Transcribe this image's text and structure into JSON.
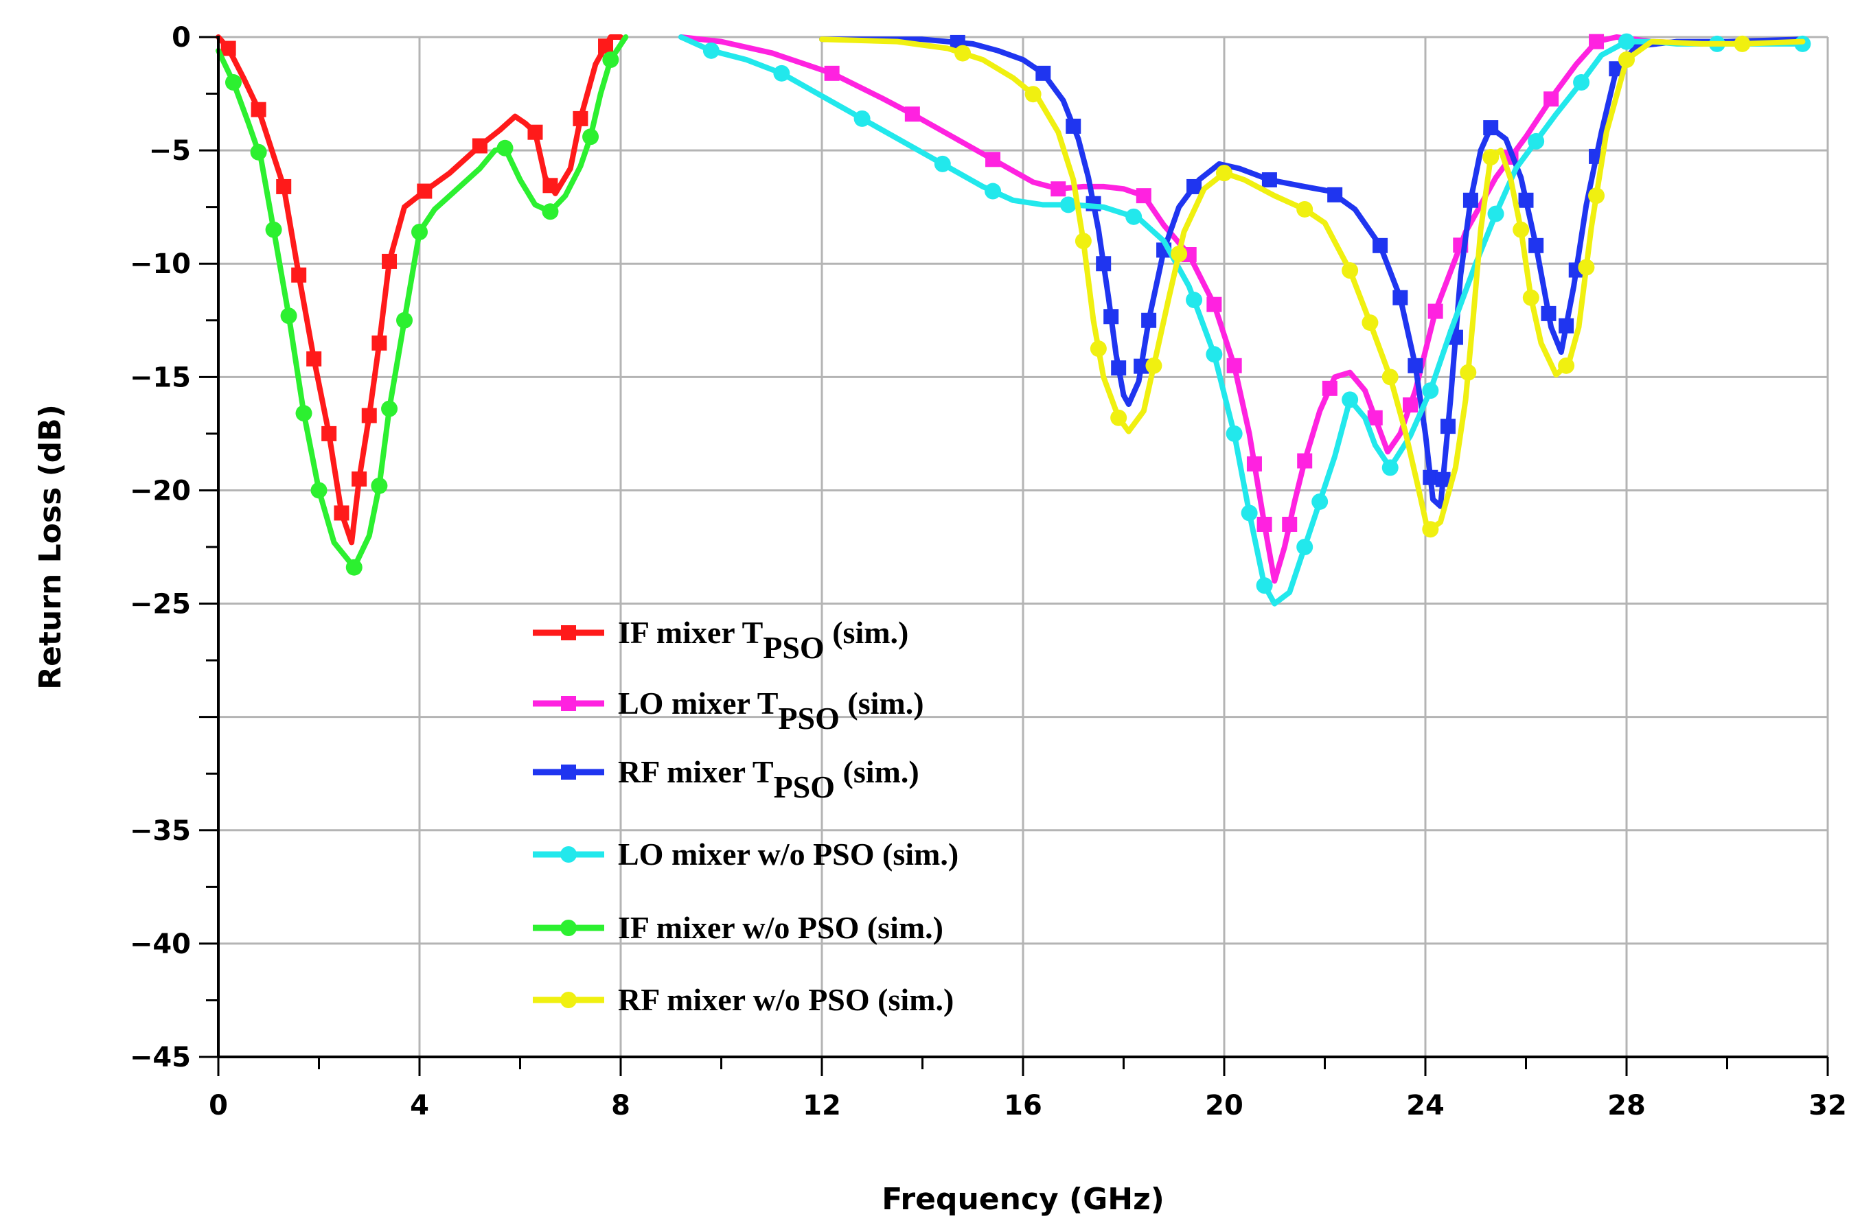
{
  "chart_data": {
    "type": "line",
    "title": "",
    "xlabel": "Frequency (GHz)",
    "ylabel": "Return Loss (dB)",
    "xlim": [
      0,
      32
    ],
    "ylim": [
      -45,
      0
    ],
    "x_ticks": [
      0,
      4,
      8,
      12,
      16,
      20,
      24,
      28,
      32
    ],
    "x_tick_labels": [
      "0",
      "4",
      "8",
      "12",
      "16",
      "20",
      "24",
      "28",
      "32"
    ],
    "y_ticks": [
      0,
      -5,
      -10,
      -15,
      -20,
      -25,
      -35,
      -40,
      -45
    ],
    "y_tick_labels": [
      "0",
      "−5",
      "−10",
      "−15",
      "−20",
      "−25",
      "−35",
      "−40",
      "−45"
    ],
    "grid": true,
    "legend_position": "lower-center",
    "series": [
      {
        "name": "IF mixer T",
        "sub": "PSO",
        "suffix": " (sim.)",
        "color": "#ff1a1a",
        "marker": "square",
        "points": [
          [
            0,
            0
          ],
          [
            0.2,
            -0.5
          ],
          [
            0.5,
            -1.8
          ],
          [
            0.8,
            -3.2
          ],
          [
            1.3,
            -6.6
          ],
          [
            1.6,
            -10.5
          ],
          [
            1.9,
            -14.2
          ],
          [
            2.2,
            -17.5
          ],
          [
            2.45,
            -21
          ],
          [
            2.65,
            -22.3
          ],
          [
            2.8,
            -19.5
          ],
          [
            3.0,
            -16.7
          ],
          [
            3.2,
            -13.5
          ],
          [
            3.4,
            -9.9
          ],
          [
            3.7,
            -7.5
          ],
          [
            4.1,
            -6.8
          ],
          [
            4.6,
            -6.0
          ],
          [
            5.2,
            -4.8
          ],
          [
            5.6,
            -4.1
          ],
          [
            5.9,
            -3.5
          ],
          [
            6.1,
            -3.8
          ],
          [
            6.3,
            -4.2
          ],
          [
            6.5,
            -6.2
          ],
          [
            6.7,
            -6.9
          ],
          [
            7.0,
            -5.8
          ],
          [
            7.2,
            -3.6
          ],
          [
            7.5,
            -1.2
          ],
          [
            7.8,
            0
          ],
          [
            8.0,
            0
          ]
        ],
        "marker_x": [
          0.2,
          0.8,
          1.3,
          1.6,
          1.9,
          2.2,
          2.45,
          2.8,
          3.0,
          3.2,
          3.4,
          4.1,
          5.2,
          6.3,
          6.6,
          7.2,
          7.7
        ]
      },
      {
        "name": "LO mixer T",
        "sub": "PSO",
        "suffix": " (sim.)",
        "color": "#ff22e0",
        "marker": "square",
        "points": [
          [
            9.2,
            0
          ],
          [
            10,
            -0.2
          ],
          [
            11,
            -0.7
          ],
          [
            12.2,
            -1.6
          ],
          [
            13.2,
            -2.7
          ],
          [
            13.8,
            -3.4
          ],
          [
            14.6,
            -4.4
          ],
          [
            15.4,
            -5.4
          ],
          [
            16.2,
            -6.4
          ],
          [
            16.7,
            -6.7
          ],
          [
            17.2,
            -6.6
          ],
          [
            17.6,
            -6.6
          ],
          [
            18.0,
            -6.7
          ],
          [
            18.4,
            -7.0
          ],
          [
            18.8,
            -8.3
          ],
          [
            19.3,
            -9.6
          ],
          [
            19.8,
            -11.8
          ],
          [
            20.2,
            -14.5
          ],
          [
            20.5,
            -17.5
          ],
          [
            20.8,
            -21.5
          ],
          [
            21.0,
            -24.0
          ],
          [
            21.2,
            -22.5
          ],
          [
            21.4,
            -20.5
          ],
          [
            21.6,
            -18.7
          ],
          [
            21.9,
            -16.5
          ],
          [
            22.2,
            -15.0
          ],
          [
            22.5,
            -14.8
          ],
          [
            22.8,
            -15.6
          ],
          [
            23.0,
            -16.8
          ],
          [
            23.25,
            -18.3
          ],
          [
            23.5,
            -17.5
          ],
          [
            23.8,
            -15.6
          ],
          [
            24.2,
            -12.1
          ],
          [
            24.8,
            -8.6
          ],
          [
            25.4,
            -6.2
          ],
          [
            26.0,
            -4.4
          ],
          [
            26.6,
            -2.4
          ],
          [
            27.0,
            -1.2
          ],
          [
            27.4,
            -0.2
          ],
          [
            27.8,
            0
          ],
          [
            28.5,
            -0.2
          ],
          [
            29.5,
            -0.3
          ],
          [
            30.5,
            -0.2
          ],
          [
            31.5,
            -0.2
          ]
        ],
        "marker_x": [
          12.2,
          13.8,
          15.4,
          16.7,
          18.4,
          19.3,
          19.8,
          20.2,
          20.6,
          20.8,
          21.3,
          21.6,
          22.1,
          23.0,
          23.7,
          24.2,
          24.7,
          25.7,
          26.5,
          27.4
        ]
      },
      {
        "name": "RF mixer T",
        "sub": "PSO",
        "suffix": " (sim.)",
        "color": "#1f35f0",
        "marker": "square",
        "points": [
          [
            12.0,
            -0.1
          ],
          [
            14.0,
            -0.1
          ],
          [
            15.0,
            -0.3
          ],
          [
            15.5,
            -0.6
          ],
          [
            16.0,
            -1.0
          ],
          [
            16.4,
            -1.6
          ],
          [
            16.8,
            -2.8
          ],
          [
            17.1,
            -4.5
          ],
          [
            17.3,
            -6.2
          ],
          [
            17.5,
            -8.5
          ],
          [
            17.7,
            -11.5
          ],
          [
            17.85,
            -14.0
          ],
          [
            18.0,
            -15.8
          ],
          [
            18.1,
            -16.2
          ],
          [
            18.3,
            -15.2
          ],
          [
            18.5,
            -12.5
          ],
          [
            18.8,
            -9.4
          ],
          [
            19.1,
            -7.5
          ],
          [
            19.5,
            -6.3
          ],
          [
            19.9,
            -5.6
          ],
          [
            20.3,
            -5.8
          ],
          [
            20.9,
            -6.3
          ],
          [
            21.6,
            -6.6
          ],
          [
            22.1,
            -6.8
          ],
          [
            22.6,
            -7.6
          ],
          [
            23.1,
            -9.2
          ],
          [
            23.5,
            -11.5
          ],
          [
            23.8,
            -14.5
          ],
          [
            24.0,
            -17.5
          ],
          [
            24.15,
            -20.4
          ],
          [
            24.3,
            -20.7
          ],
          [
            24.5,
            -16.0
          ],
          [
            24.7,
            -10.5
          ],
          [
            24.9,
            -7.2
          ],
          [
            25.1,
            -5.0
          ],
          [
            25.3,
            -4.0
          ],
          [
            25.6,
            -4.5
          ],
          [
            25.9,
            -6.2
          ],
          [
            26.2,
            -9.2
          ],
          [
            26.5,
            -12.8
          ],
          [
            26.7,
            -13.9
          ],
          [
            26.95,
            -11.0
          ],
          [
            27.2,
            -7.4
          ],
          [
            27.5,
            -4.2
          ],
          [
            27.8,
            -1.4
          ],
          [
            28.2,
            -0.4
          ],
          [
            29,
            -0.2
          ],
          [
            30,
            -0.2
          ],
          [
            31.5,
            -0.1
          ]
        ],
        "marker_x": [
          14.7,
          16.4,
          17.0,
          17.4,
          17.6,
          17.75,
          17.9,
          18.35,
          18.5,
          18.8,
          19.4,
          20.9,
          22.2,
          23.1,
          23.5,
          23.8,
          24.1,
          24.35,
          24.45,
          24.6,
          24.9,
          25.3,
          26.0,
          26.2,
          26.45,
          26.8,
          27.0,
          27.4,
          27.8
        ]
      },
      {
        "name": "LO mixer w/o PSO (sim.)",
        "sub": "",
        "suffix": "",
        "color": "#22e8ec",
        "marker": "circle",
        "points": [
          [
            9.2,
            0
          ],
          [
            9.8,
            -0.6
          ],
          [
            10.5,
            -1.0
          ],
          [
            11.2,
            -1.6
          ],
          [
            12.0,
            -2.6
          ],
          [
            12.8,
            -3.6
          ],
          [
            13.6,
            -4.6
          ],
          [
            14.4,
            -5.6
          ],
          [
            15.2,
            -6.6
          ],
          [
            15.8,
            -7.2
          ],
          [
            16.4,
            -7.4
          ],
          [
            17.0,
            -7.4
          ],
          [
            17.6,
            -7.5
          ],
          [
            18.3,
            -8.0
          ],
          [
            18.8,
            -9.0
          ],
          [
            19.3,
            -11.0
          ],
          [
            19.8,
            -14.0
          ],
          [
            20.2,
            -17.5
          ],
          [
            20.5,
            -21.0
          ],
          [
            20.8,
            -24.2
          ],
          [
            21.0,
            -25.0
          ],
          [
            21.3,
            -24.5
          ],
          [
            21.6,
            -22.5
          ],
          [
            21.9,
            -20.5
          ],
          [
            22.2,
            -18.5
          ],
          [
            22.5,
            -16.0
          ],
          [
            22.8,
            -16.8
          ],
          [
            23.0,
            -18.0
          ],
          [
            23.3,
            -19.0
          ],
          [
            23.7,
            -17.6
          ],
          [
            24.1,
            -15.6
          ],
          [
            24.5,
            -13.0
          ],
          [
            25.0,
            -10.0
          ],
          [
            25.4,
            -7.8
          ],
          [
            25.8,
            -5.8
          ],
          [
            26.2,
            -4.6
          ],
          [
            26.6,
            -3.4
          ],
          [
            27.1,
            -2.0
          ],
          [
            27.5,
            -0.8
          ],
          [
            28.0,
            -0.2
          ],
          [
            28.5,
            -0.2
          ],
          [
            29,
            -0.3
          ],
          [
            29.8,
            -0.3
          ],
          [
            30.6,
            -0.3
          ],
          [
            31.5,
            -0.3
          ]
        ],
        "marker_x": [
          9.8,
          11.2,
          12.8,
          14.4,
          15.4,
          16.9,
          18.2,
          19.4,
          19.8,
          20.2,
          20.5,
          20.8,
          21.6,
          21.9,
          22.5,
          23.3,
          24.1,
          25.4,
          26.2,
          27.1,
          28.0,
          29.8,
          31.5
        ]
      },
      {
        "name": "IF mixer w/o PSO (sim.)",
        "sub": "",
        "suffix": "",
        "color": "#2cf030",
        "marker": "circle",
        "points": [
          [
            0,
            -0.6
          ],
          [
            0.3,
            -2.0
          ],
          [
            0.6,
            -3.8
          ],
          [
            0.85,
            -5.4
          ],
          [
            1.1,
            -8.5
          ],
          [
            1.4,
            -12.3
          ],
          [
            1.7,
            -16.6
          ],
          [
            2.0,
            -20.0
          ],
          [
            2.3,
            -22.3
          ],
          [
            2.7,
            -23.4
          ],
          [
            3.0,
            -22.0
          ],
          [
            3.2,
            -19.8
          ],
          [
            3.4,
            -16.4
          ],
          [
            3.7,
            -12.5
          ],
          [
            4.0,
            -8.6
          ],
          [
            4.3,
            -7.6
          ],
          [
            4.7,
            -6.8
          ],
          [
            5.2,
            -5.8
          ],
          [
            5.5,
            -5.0
          ],
          [
            5.7,
            -4.9
          ],
          [
            6.0,
            -6.3
          ],
          [
            6.3,
            -7.4
          ],
          [
            6.6,
            -7.7
          ],
          [
            6.9,
            -7.0
          ],
          [
            7.2,
            -5.7
          ],
          [
            7.4,
            -4.4
          ],
          [
            7.6,
            -2.5
          ],
          [
            7.8,
            -1.0
          ],
          [
            8.1,
            0
          ]
        ],
        "marker_x": [
          0.3,
          0.8,
          1.1,
          1.4,
          1.7,
          2.0,
          2.7,
          3.2,
          3.4,
          3.7,
          4.0,
          5.7,
          6.6,
          7.4,
          7.8
        ]
      },
      {
        "name": "RF mixer w/o PSO  (sim.)",
        "sub": "",
        "suffix": "",
        "color": "#f0f010",
        "marker": "circle",
        "points": [
          [
            12.0,
            -0.1
          ],
          [
            13.5,
            -0.2
          ],
          [
            14.5,
            -0.5
          ],
          [
            15.2,
            -1.0
          ],
          [
            15.8,
            -1.8
          ],
          [
            16.3,
            -2.7
          ],
          [
            16.7,
            -4.2
          ],
          [
            17.0,
            -6.3
          ],
          [
            17.2,
            -9.0
          ],
          [
            17.4,
            -12.5
          ],
          [
            17.6,
            -15.0
          ],
          [
            17.9,
            -16.8
          ],
          [
            18.1,
            -17.4
          ],
          [
            18.4,
            -16.5
          ],
          [
            18.6,
            -14.5
          ],
          [
            18.9,
            -11.5
          ],
          [
            19.2,
            -8.6
          ],
          [
            19.6,
            -6.7
          ],
          [
            20.0,
            -6.0
          ],
          [
            20.4,
            -6.3
          ],
          [
            21.0,
            -7.0
          ],
          [
            21.6,
            -7.6
          ],
          [
            22.0,
            -8.2
          ],
          [
            22.5,
            -10.3
          ],
          [
            22.9,
            -12.6
          ],
          [
            23.3,
            -15.0
          ],
          [
            23.6,
            -17.4
          ],
          [
            23.85,
            -19.8
          ],
          [
            24.05,
            -21.8
          ],
          [
            24.3,
            -21.4
          ],
          [
            24.6,
            -19.0
          ],
          [
            24.8,
            -16.0
          ],
          [
            24.95,
            -12.4
          ],
          [
            25.1,
            -8.5
          ],
          [
            25.3,
            -5.3
          ],
          [
            25.5,
            -5.0
          ],
          [
            25.7,
            -6.3
          ],
          [
            25.9,
            -8.5
          ],
          [
            26.1,
            -11.5
          ],
          [
            26.3,
            -13.5
          ],
          [
            26.6,
            -14.9
          ],
          [
            26.85,
            -14.4
          ],
          [
            27.05,
            -12.8
          ],
          [
            27.3,
            -8.4
          ],
          [
            27.6,
            -4.2
          ],
          [
            28.0,
            -1.0
          ],
          [
            28.5,
            -0.2
          ],
          [
            29.5,
            -0.3
          ],
          [
            30.3,
            -0.3
          ],
          [
            31.5,
            -0.2
          ]
        ],
        "marker_x": [
          14.8,
          16.2,
          17.2,
          17.5,
          17.9,
          18.6,
          19.1,
          20.0,
          21.6,
          22.5,
          22.9,
          23.3,
          24.1,
          24.85,
          25.3,
          25.9,
          26.1,
          26.8,
          27.2,
          27.4,
          28.0,
          30.3
        ]
      }
    ]
  }
}
